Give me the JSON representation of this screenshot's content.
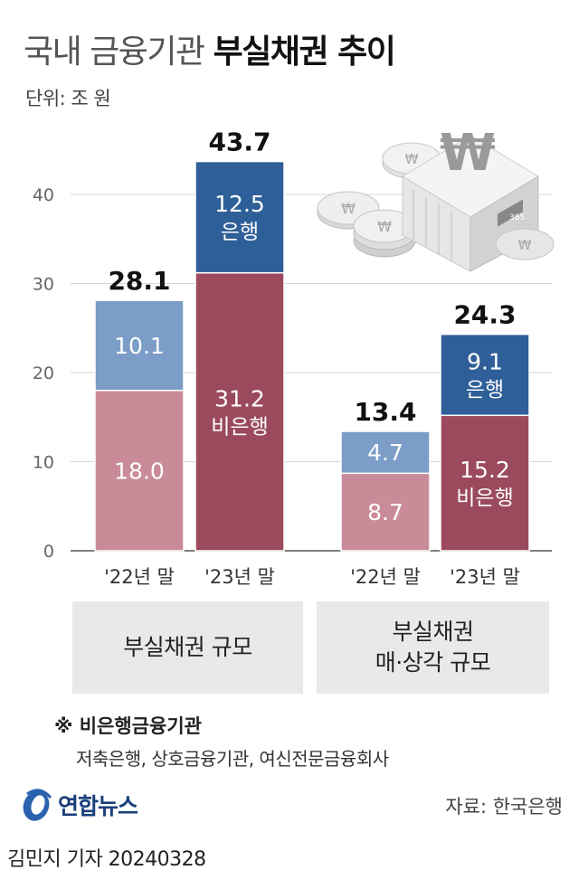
{
  "title": {
    "light": "국내 금융기관",
    "bold": "부실채권 추이"
  },
  "unit": "단위: 조 원",
  "chart_data": {
    "type": "bar",
    "stacked": true,
    "ylim": [
      0,
      45
    ],
    "yticks": [
      0,
      10,
      20,
      30,
      40
    ],
    "grid": true,
    "groups": [
      {
        "label": "부실채권 규모",
        "bars": [
          {
            "category": "'22년 말",
            "total": "28.1",
            "segments": [
              {
                "series": "비은행",
                "value": 18.0,
                "label": "18.0",
                "color": "#c98b98"
              },
              {
                "series": "은행",
                "value": 10.1,
                "label": "10.1",
                "color": "#7b9dc8"
              }
            ]
          },
          {
            "category": "'23년 말",
            "total": "43.7",
            "segments": [
              {
                "series": "비은행",
                "value": 31.2,
                "label": "31.2\n비은행",
                "color": "#9b4a5d"
              },
              {
                "series": "은행",
                "value": 12.5,
                "label": "12.5\n은행",
                "color": "#2f5f98"
              }
            ]
          }
        ]
      },
      {
        "label": "부실채권\n매·상각 규모",
        "bars": [
          {
            "category": "'22년 말",
            "total": "13.4",
            "segments": [
              {
                "series": "비은행",
                "value": 8.7,
                "label": "8.7",
                "color": "#c98b98"
              },
              {
                "series": "은행",
                "value": 4.7,
                "label": "4.7",
                "color": "#7b9dc8"
              }
            ]
          },
          {
            "category": "'23년 말",
            "total": "24.3",
            "segments": [
              {
                "series": "비은행",
                "value": 15.2,
                "label": "15.2\n비은행",
                "color": "#9b4a5d"
              },
              {
                "series": "은행",
                "value": 9.1,
                "label": "9.1\n은행",
                "color": "#2f5f98"
              }
            ]
          }
        ]
      }
    ]
  },
  "group_labels": {
    "g1": "부실채권 규모",
    "g2_line1": "부실채권",
    "g2_line2": "매·상각 규모"
  },
  "note": {
    "title": "※ 비은행금융기관",
    "body": "저축은행, 상호금융기관, 여신전문금융회사"
  },
  "logo": {
    "name": "연합뉴스",
    "icon": "yonhap-logo-icon"
  },
  "source": "자료: 한국은행",
  "byline": "김민지 기자  20240328",
  "illustration": {
    "icons": [
      "coin-icon",
      "bank-building-icon",
      "won-sign-icon"
    ],
    "coin_mark": "₩",
    "sign_text": "365"
  }
}
